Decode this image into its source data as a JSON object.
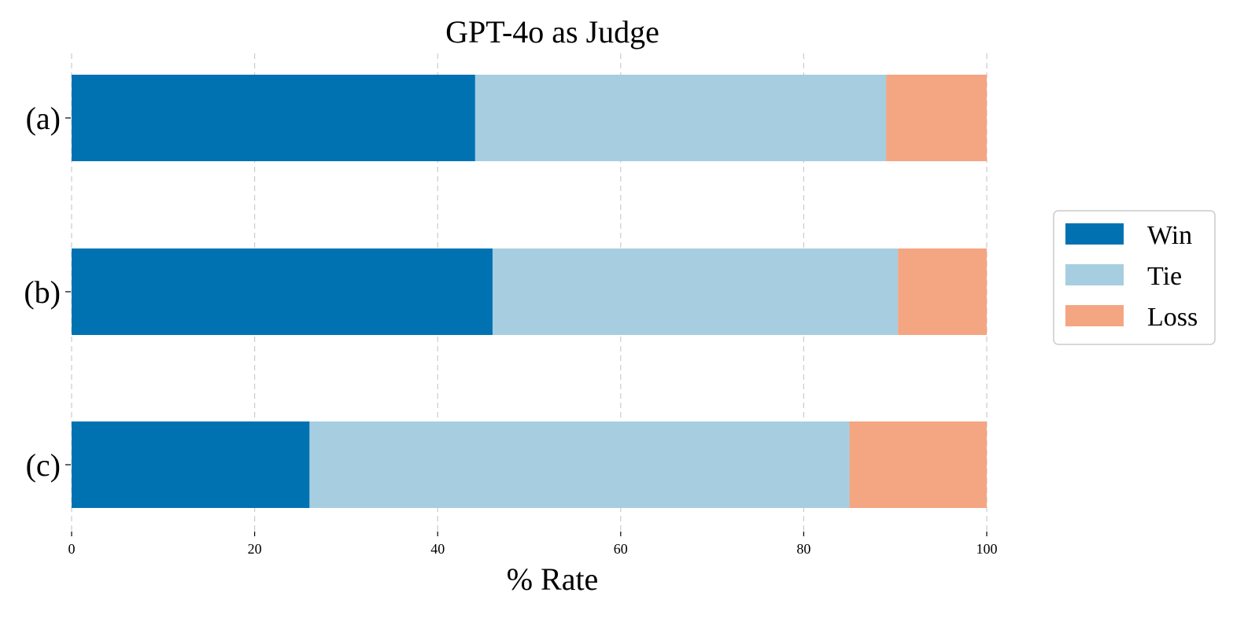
{
  "chart_data": {
    "type": "bar",
    "orientation": "horizontal",
    "stacked": true,
    "title": "GPT-4o as Judge",
    "xlabel": "% Rate",
    "ylabel": "",
    "xlim": [
      0,
      100
    ],
    "xticks": [
      "0",
      "20",
      "40",
      "60",
      "80",
      "100"
    ],
    "categories": [
      "(a)",
      "(b)",
      "(c)"
    ],
    "series": [
      {
        "name": "Win",
        "color": "#0072b2",
        "values": [
          44.1,
          46.0,
          26.0
        ]
      },
      {
        "name": "Tie",
        "color": "#a6cee0",
        "values": [
          44.9,
          44.3,
          59.0
        ]
      },
      {
        "name": "Loss",
        "color": "#f4a582",
        "values": [
          11.0,
          9.7,
          15.0
        ]
      }
    ],
    "grid": true,
    "legend_position": "right"
  }
}
